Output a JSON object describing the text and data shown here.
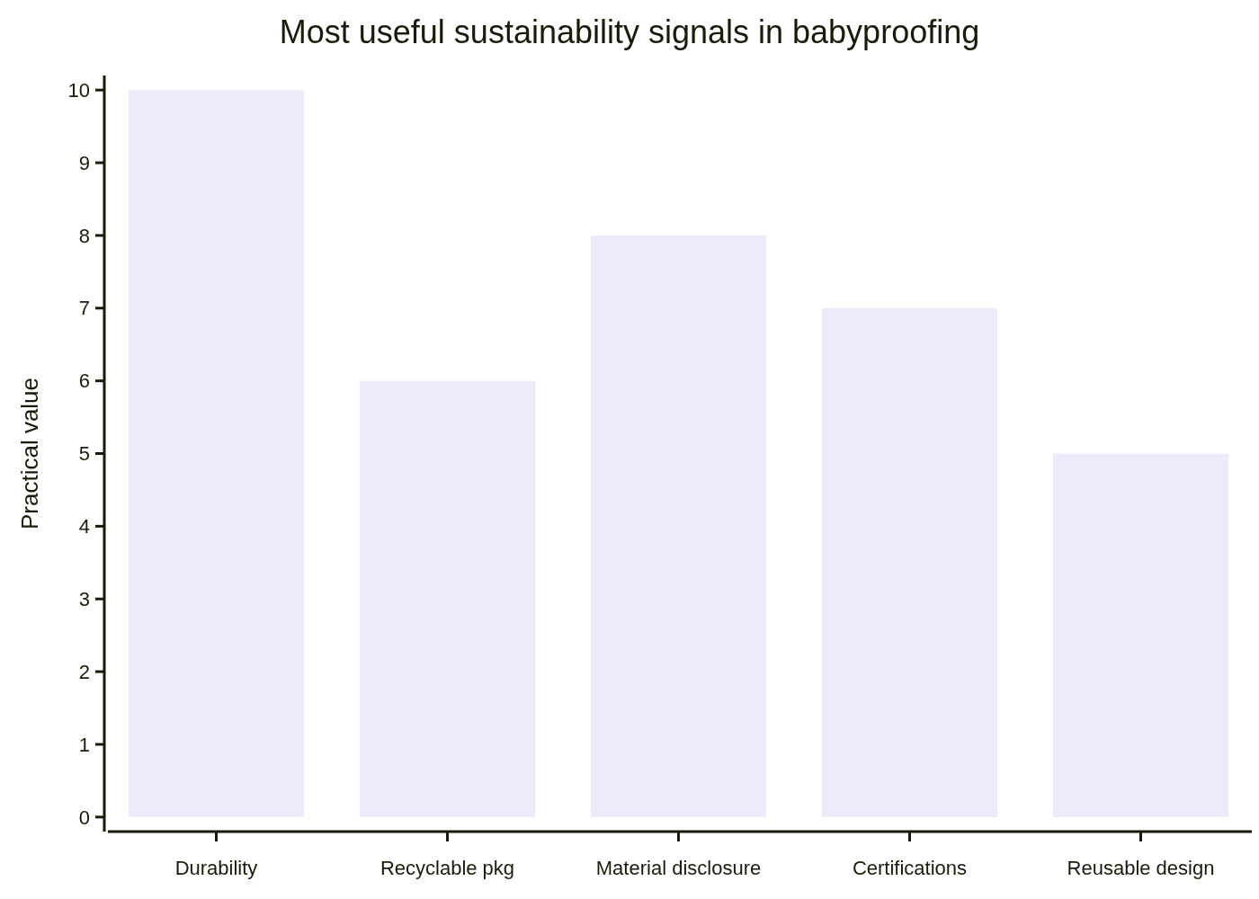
{
  "chart_data": {
    "type": "bar",
    "title": "Most useful sustainability signals in babyproofing",
    "ylabel": "Practical value",
    "categories": [
      "Durability",
      "Recyclable pkg",
      "Material disclosure",
      "Certifications",
      "Reusable design"
    ],
    "values": [
      10,
      6,
      8,
      7,
      5
    ],
    "color": "#ebebfa",
    "ylim": [
      -0.2,
      10.2
    ],
    "yticks": [
      0,
      1,
      2,
      3,
      4,
      5,
      6,
      7,
      8,
      9,
      10
    ],
    "grid": false
  }
}
